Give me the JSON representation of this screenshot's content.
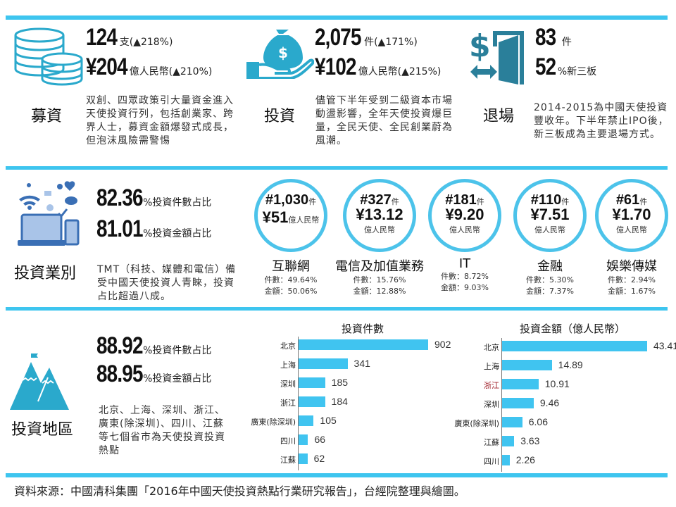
{
  "colors": {
    "accent": "#3ec5ef",
    "icon": "#2aa9cc",
    "exit_icon": "#2a7f9a",
    "bar": "#40c4f0"
  },
  "fundraising": {
    "title": "募資",
    "icon": "coins-icon",
    "count": "124",
    "count_unit": "支(▲218%)",
    "amount": "¥204",
    "amount_unit": "億人民幣(▲210%)",
    "desc": "双創、四眾政策引大量資金進入天使投資行列，包括創業家、跨界人士，募資金額爆發式成長，但泡沫風險需警惕"
  },
  "investment": {
    "title": "投資",
    "icon": "money-bag-hand-icon",
    "count": "2,075",
    "count_unit": "件(▲171%)",
    "amount": "¥102",
    "amount_unit": "億人民幣(▲215%)",
    "desc": "儘管下半年受到二級資本市場動盪影響，全年天使投資爆巨量，全民天使、全民創業蔚為風潮。"
  },
  "exit": {
    "title": "退場",
    "icon": "exit-door-icon",
    "count": "83",
    "count_unit": "件",
    "pct": "52",
    "pct_unit": "%新三板",
    "desc": "2014-2015為中國天使投資豐收年。下半年禁止IPO後，新三板成為主要退場方式。"
  },
  "industry": {
    "title": "投資業別",
    "icon": "devices-icon",
    "count_share": "82.36",
    "count_share_label": "%投資件數占比",
    "amount_share": "81.01",
    "amount_share_label": "%投資金額占比",
    "desc": "TMT（科技、媒體和電信）備受中國天使投資人青睞，投資占比超過八成。",
    "items": [
      {
        "name": "互聯網",
        "count": "#1,030",
        "count_unit": "件",
        "amount": "¥51",
        "amount_unit": "億人民幣",
        "count_pct": "件數：49.64%",
        "amount_pct": "金額：50.06%"
      },
      {
        "name": "電信及加值業務",
        "count": "#327",
        "count_unit": "件",
        "amount": "¥13.12",
        "amount_unit": "億人民幣",
        "count_pct": "件數：15.76%",
        "amount_pct": "金額：12.88%"
      },
      {
        "name": "IT",
        "count": "#181",
        "count_unit": "件",
        "amount": "¥9.20",
        "amount_unit": "億人民幣",
        "count_pct": "件數：8.72%",
        "amount_pct": "金額：9.03%"
      },
      {
        "name": "金融",
        "count": "#110",
        "count_unit": "件",
        "amount": "¥7.51",
        "amount_unit": "億人民幣",
        "count_pct": "件數：5.30%",
        "amount_pct": "金額：7.37%"
      },
      {
        "name": "娛樂傳媒",
        "count": "#61",
        "count_unit": "件",
        "amount": "¥1.70",
        "amount_unit": "億人民幣",
        "count_pct": "件數：2.94%",
        "amount_pct": "金額：1.67%"
      }
    ]
  },
  "region": {
    "title": "投資地區",
    "icon": "mountain-flag-icon",
    "count_share": "88.92",
    "count_share_label": "%投資件數占比",
    "amount_share": "88.95",
    "amount_share_label": "%投資金額占比",
    "desc": "北京、上海、深圳、浙江、廣東(除深圳)、四川、江蘇等七個省市為天使投資投資熱點"
  },
  "chart_data": [
    {
      "type": "bar",
      "orientation": "horizontal",
      "title": "投資件數",
      "categories": [
        "北京",
        "上海",
        "深圳",
        "浙江",
        "廣東(除深圳)",
        "四川",
        "江蘇"
      ],
      "values": [
        902,
        341,
        185,
        184,
        105,
        66,
        62
      ],
      "labels": [
        "902",
        "341",
        "185",
        "184",
        "105",
        "66",
        "62"
      ],
      "xlim": [
        0,
        902
      ]
    },
    {
      "type": "bar",
      "orientation": "horizontal",
      "title": "投資金額（億人民幣）",
      "categories": [
        "北京",
        "上海",
        "浙江",
        "深圳",
        "廣東(除深圳)",
        "江蘇",
        "四川"
      ],
      "values": [
        43.41,
        14.89,
        10.91,
        9.46,
        6.06,
        3.63,
        2.26
      ],
      "labels": [
        "43.41",
        "14.89",
        "10.91",
        "9.46",
        "6.06",
        "3.63",
        "2.26"
      ],
      "xlim": [
        0,
        43.41
      ]
    }
  ],
  "footer": {
    "source": "資料來源：中國清科集團「2016年中國天使投資熱點行業研究報告」，台經院整理與繪圖。"
  }
}
